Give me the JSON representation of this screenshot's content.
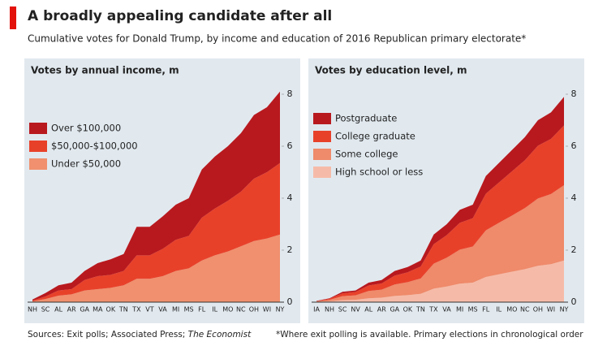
{
  "title": "A broadly appealing candidate after all",
  "subtitle": "Cumulative votes for Donald Trump, by income and education of 2016 Republican primary electorate*",
  "source": "Sources: Exit polls; Associated Press; ",
  "source_publication": "The Economist",
  "note": "*Where exit polling is available. Primary elections in chronological order",
  "chart_data": [
    {
      "type": "stacked_area",
      "title": "Votes by annual income, m",
      "categories": [
        "NH",
        "SC",
        "AL",
        "AR",
        "GA",
        "MA",
        "OK",
        "TN",
        "TX",
        "VT",
        "VA",
        "MI",
        "MS",
        "FL",
        "IL",
        "MO",
        "NC",
        "OH",
        "WI",
        "NY"
      ],
      "series": [
        {
          "name": "Under $50,000",
          "color": "#f0906e",
          "values": [
            0.03,
            0.12,
            0.25,
            0.3,
            0.45,
            0.5,
            0.55,
            0.65,
            0.9,
            0.9,
            1.0,
            1.2,
            1.3,
            1.6,
            1.8,
            1.95,
            2.15,
            2.35,
            2.45,
            2.6
          ]
        },
        {
          "name": "$50,000-$100,000",
          "color": "#e8412a",
          "values": [
            0.03,
            0.1,
            0.2,
            0.2,
            0.4,
            0.5,
            0.5,
            0.55,
            0.9,
            0.9,
            1.05,
            1.2,
            1.25,
            1.65,
            1.8,
            1.95,
            2.1,
            2.4,
            2.55,
            2.75
          ]
        },
        {
          "name": "Over $100,000",
          "color": "#b8191e",
          "values": [
            0.04,
            0.13,
            0.2,
            0.25,
            0.35,
            0.5,
            0.6,
            0.65,
            1.1,
            1.1,
            1.25,
            1.35,
            1.45,
            1.85,
            2.0,
            2.1,
            2.25,
            2.45,
            2.5,
            2.75
          ]
        }
      ],
      "ylim": [
        0,
        8
      ],
      "yticks": [
        0,
        2,
        4,
        6,
        8
      ],
      "grid": false
    },
    {
      "type": "stacked_area",
      "title": "Votes by education level, m",
      "categories": [
        "IA",
        "NH",
        "SC",
        "NV",
        "AL",
        "AR",
        "GA",
        "OK",
        "TN",
        "TX",
        "VA",
        "MI",
        "MS",
        "FL",
        "IL",
        "MO",
        "NC",
        "OH",
        "WI",
        "NY"
      ],
      "series": [
        {
          "name": "High school or less",
          "color": "#f6bba8",
          "values": [
            0.01,
            0.03,
            0.08,
            0.09,
            0.15,
            0.17,
            0.24,
            0.27,
            0.32,
            0.52,
            0.6,
            0.71,
            0.75,
            0.97,
            1.07,
            1.17,
            1.27,
            1.4,
            1.46,
            1.6
          ]
        },
        {
          "name": "Some college",
          "color": "#ef8a6a",
          "values": [
            0.02,
            0.06,
            0.15,
            0.17,
            0.28,
            0.31,
            0.44,
            0.5,
            0.59,
            0.96,
            1.11,
            1.31,
            1.39,
            1.79,
            1.98,
            2.16,
            2.35,
            2.59,
            2.7,
            2.9
          ]
        },
        {
          "name": "College graduate",
          "color": "#e8412a",
          "values": [
            0.01,
            0.04,
            0.11,
            0.13,
            0.21,
            0.24,
            0.34,
            0.38,
            0.46,
            0.75,
            0.87,
            1.03,
            1.09,
            1.41,
            1.55,
            1.7,
            1.84,
            2.03,
            2.12,
            2.3
          ]
        },
        {
          "name": "Postgraduate",
          "color": "#b8191e",
          "values": [
            0.01,
            0.02,
            0.06,
            0.06,
            0.11,
            0.13,
            0.18,
            0.2,
            0.23,
            0.37,
            0.42,
            0.5,
            0.52,
            0.68,
            0.75,
            0.82,
            0.89,
            0.98,
            1.02,
            1.1
          ]
        }
      ],
      "ylim": [
        0,
        8
      ],
      "yticks": [
        0,
        2,
        4,
        6,
        8
      ],
      "grid": false
    }
  ]
}
